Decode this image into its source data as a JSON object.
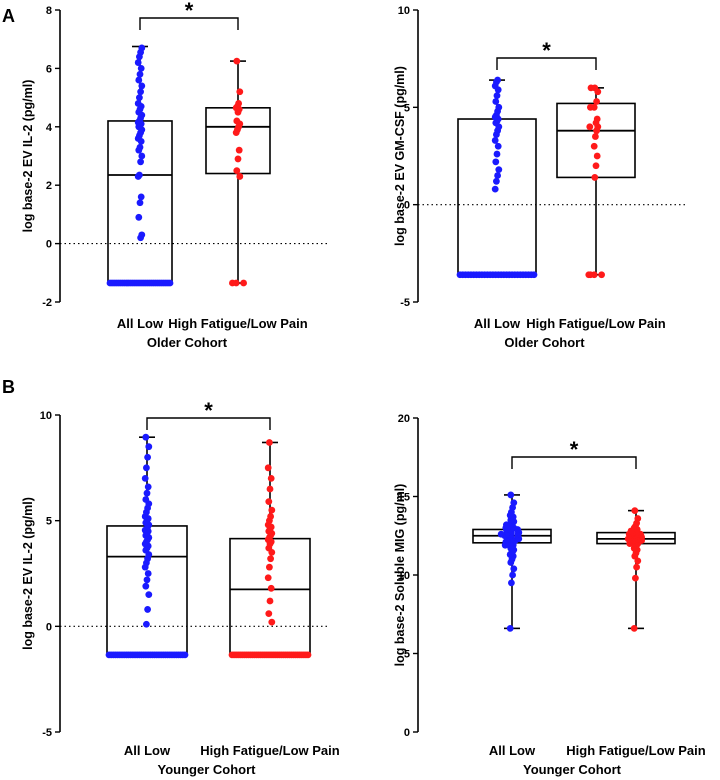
{
  "panel_labels": {
    "a": "A",
    "b": "B"
  },
  "chart_data": [
    {
      "type": "box",
      "id": "A1",
      "ylabel": "log base-2 EV IL-2  (pg/ml)",
      "xlabel": "Older Cohort",
      "ylim": [
        -2,
        8
      ],
      "yticks": [
        -2,
        0,
        2,
        4,
        6,
        8
      ],
      "reference_line": 0,
      "significance": "*",
      "categories": [
        "All Low",
        "High Fatigue/Low Pain"
      ],
      "colors": [
        "#1a1aff",
        "#ff1a1a"
      ],
      "boxes": [
        {
          "min": -1.35,
          "q1": -1.35,
          "median": 2.35,
          "q3": 4.2,
          "max": 6.75
        },
        {
          "min": -1.35,
          "q1": 2.4,
          "median": 4.0,
          "q3": 4.65,
          "max": 6.25
        }
      ],
      "points": [
        [
          -1.35,
          -1.35,
          -1.35,
          -1.35,
          -1.35,
          -1.35,
          -1.35,
          -1.35,
          -1.35,
          -1.35,
          -1.35,
          -1.35,
          -1.35,
          -1.35,
          -1.35,
          -1.35,
          -1.35,
          -1.35,
          -1.35,
          -1.35,
          -1.35,
          -1.35,
          -1.35,
          -1.35,
          -1.35,
          -1.35,
          -1.35,
          -1.35,
          -1.35,
          -1.35,
          0.2,
          0.3,
          0.9,
          1.4,
          1.6,
          2.3,
          2.35,
          2.8,
          3.0,
          3.2,
          3.3,
          3.5,
          3.6,
          3.7,
          3.8,
          3.9,
          4.0,
          4.05,
          4.1,
          4.15,
          4.2,
          4.3,
          4.4,
          4.5,
          4.6,
          4.7,
          4.8,
          5.0,
          5.2,
          5.4,
          5.6,
          5.8,
          6.0,
          6.2,
          6.4,
          6.55,
          6.7
        ],
        [
          -1.35,
          -1.35,
          -1.35,
          2.3,
          2.5,
          2.9,
          3.2,
          3.8,
          3.9,
          4.0,
          4.1,
          4.2,
          4.5,
          4.6,
          4.65,
          4.7,
          4.8,
          5.2,
          6.25
        ]
      ]
    },
    {
      "type": "box",
      "id": "A2",
      "ylabel": "log base-2 EV GM-CSF  (pg/ml)",
      "xlabel": "Older  Cohort",
      "ylim": [
        -5,
        10
      ],
      "yticks": [
        -5,
        0,
        5,
        10
      ],
      "reference_line": 0,
      "significance": "*",
      "categories": [
        "All Low",
        "High Fatigue/Low Pain"
      ],
      "colors": [
        "#1a1aff",
        "#ff1a1a"
      ],
      "boxes": [
        {
          "min": -3.6,
          "q1": -3.6,
          "median": -3.6,
          "q3": 4.4,
          "max": 6.4
        },
        {
          "min": -3.6,
          "q1": 1.4,
          "median": 3.8,
          "q3": 5.2,
          "max": 6.0
        }
      ],
      "points": [
        [
          -3.6,
          -3.6,
          -3.6,
          -3.6,
          -3.6,
          -3.6,
          -3.6,
          -3.6,
          -3.6,
          -3.6,
          -3.6,
          -3.6,
          -3.6,
          -3.6,
          -3.6,
          -3.6,
          -3.6,
          -3.6,
          -3.6,
          -3.6,
          -3.6,
          -3.6,
          -3.6,
          -3.6,
          -3.6,
          -3.6,
          -3.6,
          -3.6,
          0.8,
          1.2,
          1.5,
          1.8,
          2.2,
          2.6,
          3.0,
          3.3,
          3.6,
          3.8,
          4.0,
          4.2,
          4.3,
          4.4,
          4.5,
          4.6,
          4.8,
          5.0,
          5.3,
          5.6,
          5.9,
          6.1,
          6.3,
          6.4
        ],
        [
          -3.6,
          -3.6,
          -3.6,
          -3.6,
          1.4,
          2.0,
          2.5,
          3.0,
          3.5,
          3.8,
          4.0,
          4.0,
          4.2,
          4.4,
          5.0,
          5.0,
          5.3,
          5.8,
          6.0,
          6.0
        ]
      ]
    },
    {
      "type": "box",
      "id": "B1",
      "ylabel": "log base-2 EV IL-2  (pg/ml)",
      "xlabel": "Younger Cohort",
      "ylim": [
        -5,
        10
      ],
      "yticks": [
        -5,
        0,
        5,
        10
      ],
      "reference_line": 0,
      "significance": "*",
      "categories": [
        "All Low",
        "High Fatigue/Low Pain"
      ],
      "colors": [
        "#1a1aff",
        "#ff1a1a"
      ],
      "boxes": [
        {
          "min": -1.35,
          "q1": -1.35,
          "median": 3.3,
          "q3": 4.75,
          "max": 8.95
        },
        {
          "min": -1.35,
          "q1": -1.35,
          "median": 1.75,
          "q3": 4.15,
          "max": 8.7
        }
      ],
      "points": [
        [
          -1.35,
          -1.35,
          -1.35,
          -1.35,
          -1.35,
          -1.35,
          -1.35,
          -1.35,
          -1.35,
          -1.35,
          -1.35,
          -1.35,
          -1.35,
          -1.35,
          -1.35,
          -1.35,
          -1.35,
          -1.35,
          -1.35,
          -1.35,
          -1.35,
          -1.35,
          -1.35,
          -1.35,
          -1.35,
          -1.35,
          -1.35,
          -1.35,
          -1.35,
          -1.35,
          -1.35,
          -1.35,
          -1.35,
          -1.35,
          -1.35,
          -1.35,
          0.1,
          0.8,
          1.5,
          1.9,
          2.2,
          2.5,
          2.8,
          3.0,
          3.2,
          3.4,
          3.6,
          3.7,
          3.8,
          3.9,
          4.0,
          4.1,
          4.2,
          4.3,
          4.4,
          4.5,
          4.55,
          4.6,
          4.7,
          4.8,
          4.9,
          5.0,
          5.1,
          5.2,
          5.4,
          5.6,
          5.8,
          6.0,
          6.3,
          6.6,
          7.0,
          7.5,
          8.0,
          8.5,
          8.95
        ],
        [
          -1.35,
          -1.35,
          -1.35,
          -1.35,
          -1.35,
          -1.35,
          -1.35,
          -1.35,
          -1.35,
          -1.35,
          -1.35,
          -1.35,
          -1.35,
          -1.35,
          -1.35,
          -1.35,
          -1.35,
          -1.35,
          -1.35,
          -1.35,
          -1.35,
          -1.35,
          -1.35,
          -1.35,
          -1.35,
          -1.35,
          -1.35,
          -1.35,
          -1.35,
          -1.35,
          -1.35,
          -1.35,
          -1.35,
          -1.35,
          -1.35,
          -1.35,
          -1.35,
          -1.35,
          0.2,
          0.6,
          1.2,
          1.8,
          2.3,
          2.8,
          3.2,
          3.5,
          3.7,
          3.9,
          4.0,
          4.1,
          4.2,
          4.3,
          4.4,
          4.5,
          4.6,
          4.7,
          4.8,
          5.0,
          5.2,
          5.5,
          5.9,
          6.5,
          7.0,
          7.5,
          8.7
        ]
      ]
    },
    {
      "type": "box",
      "id": "B2",
      "ylabel": "log base-2 Soluble MIG (pg/ml)",
      "xlabel": "Younger Cohort",
      "ylim": [
        0,
        20
      ],
      "yticks": [
        0,
        5,
        10,
        15,
        20
      ],
      "reference_line": null,
      "significance": "*",
      "categories": [
        "All Low",
        "High Fatigue/Low Pain"
      ],
      "colors": [
        "#1a1aff",
        "#ff1a1a"
      ],
      "boxes": [
        {
          "min": 6.6,
          "q1": 12.05,
          "median": 12.5,
          "q3": 12.9,
          "max": 15.1
        },
        {
          "min": 6.6,
          "q1": 12.0,
          "median": 12.3,
          "q3": 12.7,
          "max": 14.1
        }
      ],
      "points": [
        [
          6.6,
          9.5,
          10.0,
          10.4,
          10.8,
          11.0,
          11.2,
          11.3,
          11.4,
          11.5,
          11.6,
          11.7,
          11.8,
          11.9,
          11.9,
          12.0,
          12.0,
          12.1,
          12.1,
          12.2,
          12.2,
          12.2,
          12.3,
          12.3,
          12.3,
          12.4,
          12.4,
          12.4,
          12.5,
          12.5,
          12.5,
          12.5,
          12.6,
          12.6,
          12.6,
          12.6,
          12.7,
          12.7,
          12.7,
          12.8,
          12.8,
          12.8,
          12.9,
          12.9,
          12.9,
          13.0,
          13.0,
          13.1,
          13.1,
          13.2,
          13.2,
          13.3,
          13.4,
          13.5,
          13.6,
          13.7,
          13.8,
          14.0,
          14.3,
          14.6,
          15.1
        ],
        [
          6.6,
          9.8,
          10.5,
          10.9,
          11.2,
          11.4,
          11.6,
          11.7,
          11.8,
          11.9,
          12.0,
          12.0,
          12.1,
          12.1,
          12.2,
          12.2,
          12.2,
          12.3,
          12.3,
          12.3,
          12.3,
          12.4,
          12.4,
          12.4,
          12.5,
          12.5,
          12.5,
          12.6,
          12.6,
          12.6,
          12.7,
          12.7,
          12.8,
          12.8,
          12.9,
          13.0,
          13.1,
          13.3,
          13.6,
          14.1
        ]
      ]
    }
  ]
}
